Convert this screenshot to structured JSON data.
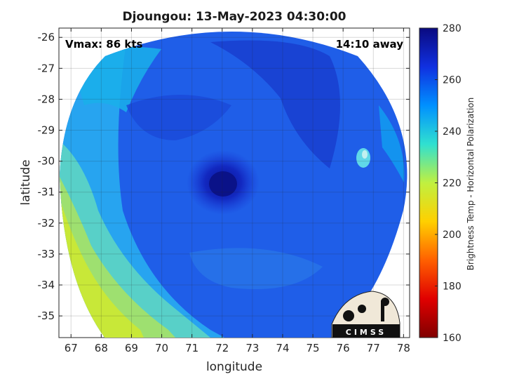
{
  "title": "Djoungou: 13-May-2023 04:30:00",
  "vmax_text": "Vmax: 86 kts",
  "distance_text": "14:10 away",
  "logo_text": "CIMSS",
  "map": {
    "xlabel": "longitude",
    "ylabel": "latitude",
    "x_range": [
      66.6,
      78.2
    ],
    "y_range": [
      -35.7,
      -25.7
    ],
    "x_ticks": [
      "67",
      "68",
      "69",
      "70",
      "71",
      "72",
      "73",
      "74",
      "75",
      "76",
      "77",
      "78"
    ],
    "y_ticks": [
      "-26",
      "-27",
      "-28",
      "-29",
      "-30",
      "-31",
      "-32",
      "-33",
      "-34",
      "-35"
    ],
    "storm_center": {
      "lon": 72.4,
      "lat": -30.8
    },
    "grid": true
  },
  "colorbar": {
    "title": "Brightness Temp - Horizontal Polarization",
    "range": [
      160,
      280
    ],
    "ticks": [
      "280",
      "260",
      "240",
      "220",
      "200",
      "180",
      "160"
    ],
    "colormap": "jet"
  },
  "colors": {
    "background_ocean": "#2060e0",
    "eye": "#0a1aa8",
    "warm_edge": "#b8e830"
  }
}
